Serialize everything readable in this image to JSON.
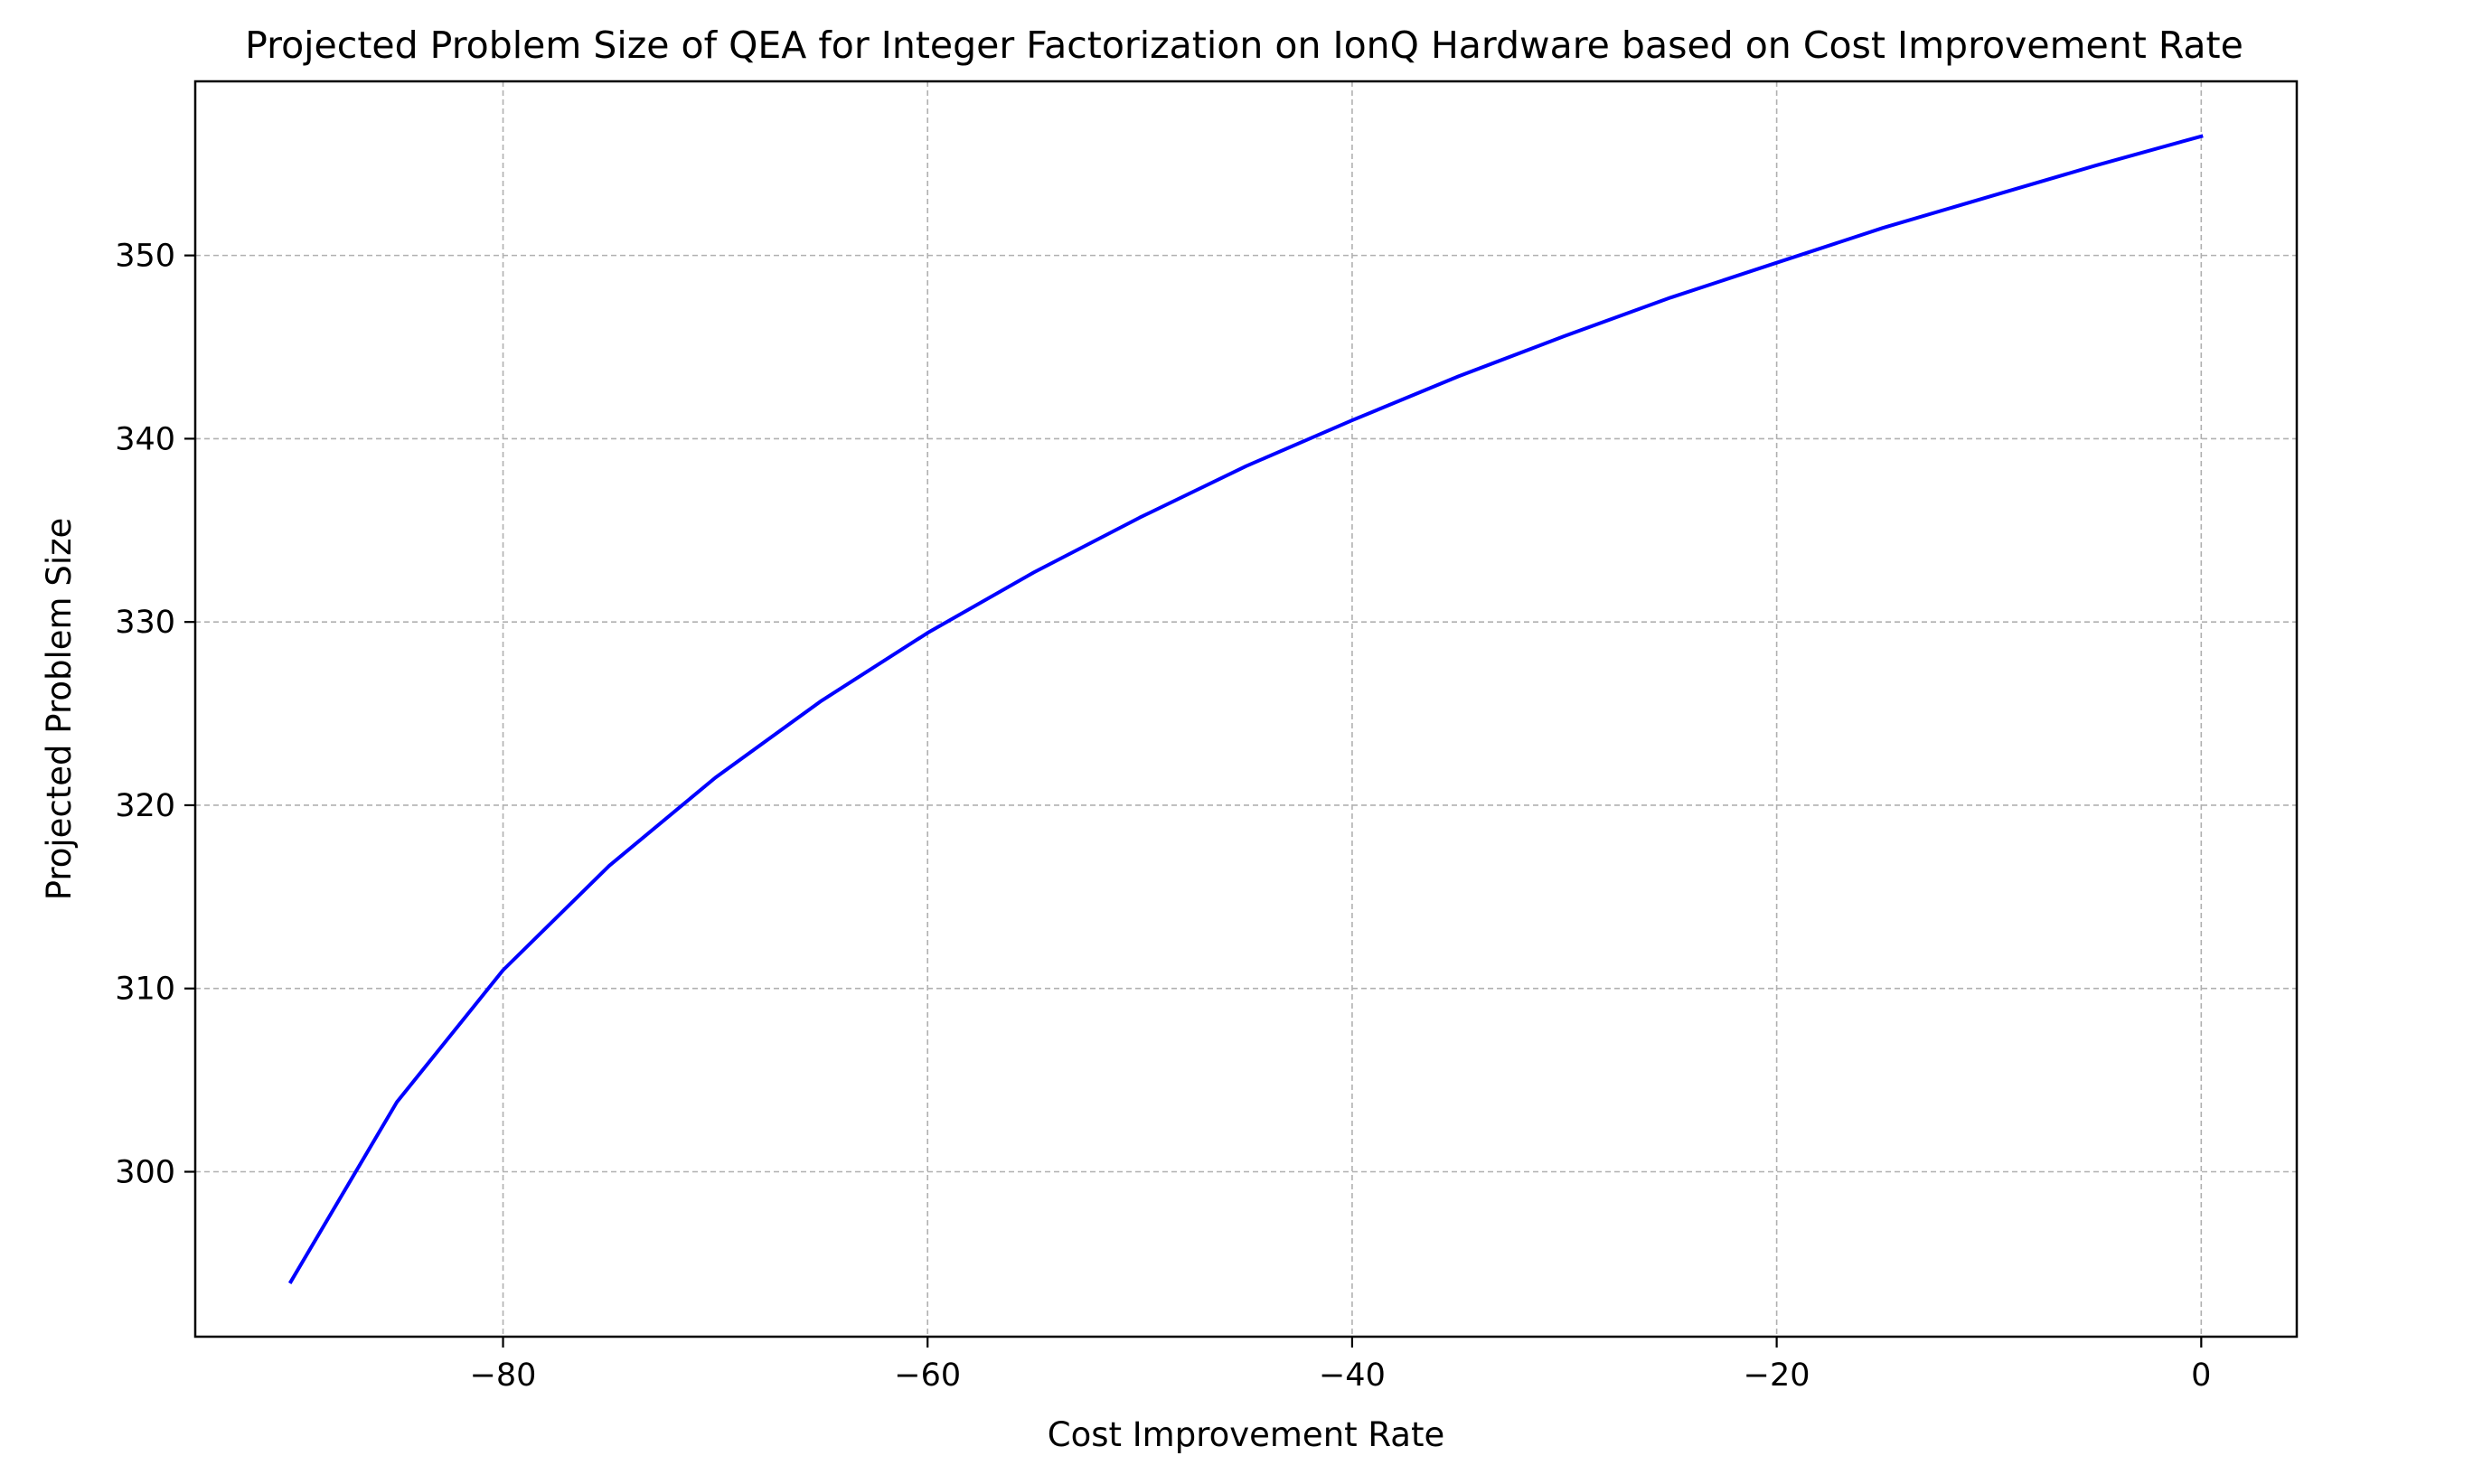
{
  "chart_data": {
    "type": "line",
    "title": "Projected Problem Size of QEA for Integer Factorization on IonQ Hardware based on Cost Improvement Rate",
    "xlabel": "Cost Improvement Rate",
    "ylabel": "Projected Problem Size",
    "xlim": [
      -94.5,
      4.5
    ],
    "ylim": [
      291.0,
      359.5
    ],
    "xticks": [
      -80,
      -60,
      -40,
      -20,
      0
    ],
    "xtick_labels": [
      "−80",
      "−60",
      "−40",
      "−20",
      "0"
    ],
    "yticks": [
      300,
      310,
      320,
      330,
      340,
      350
    ],
    "ytick_labels": [
      "300",
      "310",
      "320",
      "330",
      "340",
      "350"
    ],
    "grid": true,
    "grid_style": "dashed",
    "series": [
      {
        "color": "#0000ff",
        "x": [
          -90,
          -85,
          -80,
          -75,
          -70,
          -65,
          -60,
          -55,
          -50,
          -45,
          -40,
          -35,
          -30,
          -25,
          -20,
          -15,
          -10,
          -5,
          0
        ],
        "y": [
          294.0,
          303.8,
          311.0,
          316.7,
          321.5,
          325.7,
          329.4,
          332.7,
          335.7,
          338.5,
          341.0,
          343.4,
          345.6,
          347.7,
          349.6,
          351.5,
          353.2,
          354.9,
          356.5
        ]
      }
    ]
  }
}
